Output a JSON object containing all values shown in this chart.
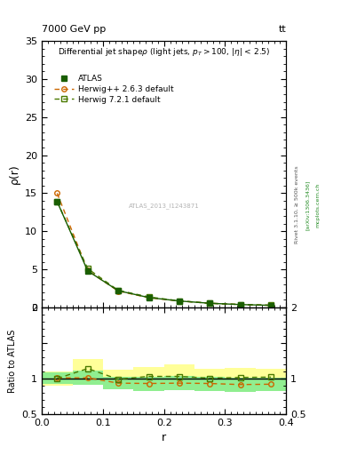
{
  "title_top": "7000 GeV pp",
  "title_right": "tt",
  "ylabel_main": "ρ(r)",
  "ylabel_ratio": "Ratio to ATLAS",
  "xlabel": "r",
  "watermark": "ATLAS_2013_I1243871",
  "ylim_main": [
    0,
    35
  ],
  "ylim_ratio": [
    0.5,
    2.0
  ],
  "xlim": [
    0,
    0.4
  ],
  "r_centers": [
    0.025,
    0.075,
    0.125,
    0.175,
    0.225,
    0.275,
    0.325,
    0.375
  ],
  "atlas_y": [
    13.9,
    4.8,
    2.2,
    1.3,
    0.85,
    0.55,
    0.38,
    0.28
  ],
  "atlas_yerr": [
    0.3,
    0.15,
    0.08,
    0.05,
    0.04,
    0.03,
    0.02,
    0.015
  ],
  "herwig_pp_y": [
    15.0,
    4.85,
    2.15,
    1.28,
    0.85,
    0.55,
    0.38,
    0.28
  ],
  "herwig72_y": [
    13.9,
    5.1,
    2.25,
    1.38,
    0.87,
    0.55,
    0.39,
    0.29
  ],
  "herwig_pp_ratio": [
    1.01,
    1.01,
    0.935,
    0.93,
    0.935,
    0.93,
    0.915,
    0.92
  ],
  "herwig72_ratio": [
    1.0,
    1.14,
    0.99,
    1.03,
    1.03,
    1.005,
    1.015,
    1.02
  ],
  "herwig_pp_ratio_err_lo": [
    0.08,
    0.1,
    0.09,
    0.1,
    0.1,
    0.1,
    0.1,
    0.09
  ],
  "herwig_pp_ratio_err_hi": [
    0.08,
    0.1,
    0.09,
    0.1,
    0.1,
    0.1,
    0.1,
    0.09
  ],
  "herwig72_ratio_err_lo": [
    0.1,
    0.14,
    0.13,
    0.13,
    0.17,
    0.13,
    0.13,
    0.12
  ],
  "herwig72_ratio_err_hi": [
    0.1,
    0.14,
    0.13,
    0.13,
    0.17,
    0.13,
    0.13,
    0.12
  ],
  "color_atlas": "#1a5e00",
  "color_herwig_pp": "#cc6600",
  "color_herwig72": "#4a7a00",
  "color_band_inner": "#90ee90",
  "color_band_outer": "#ffff99",
  "bin_edges": [
    0.0,
    0.05,
    0.1,
    0.15,
    0.2,
    0.25,
    0.3,
    0.35,
    0.4
  ],
  "right_texts": [
    "Rivet 3.1.10, ≥ 500k events",
    "[arXiv:1306.3436]",
    "mcplots.cern.ch"
  ]
}
